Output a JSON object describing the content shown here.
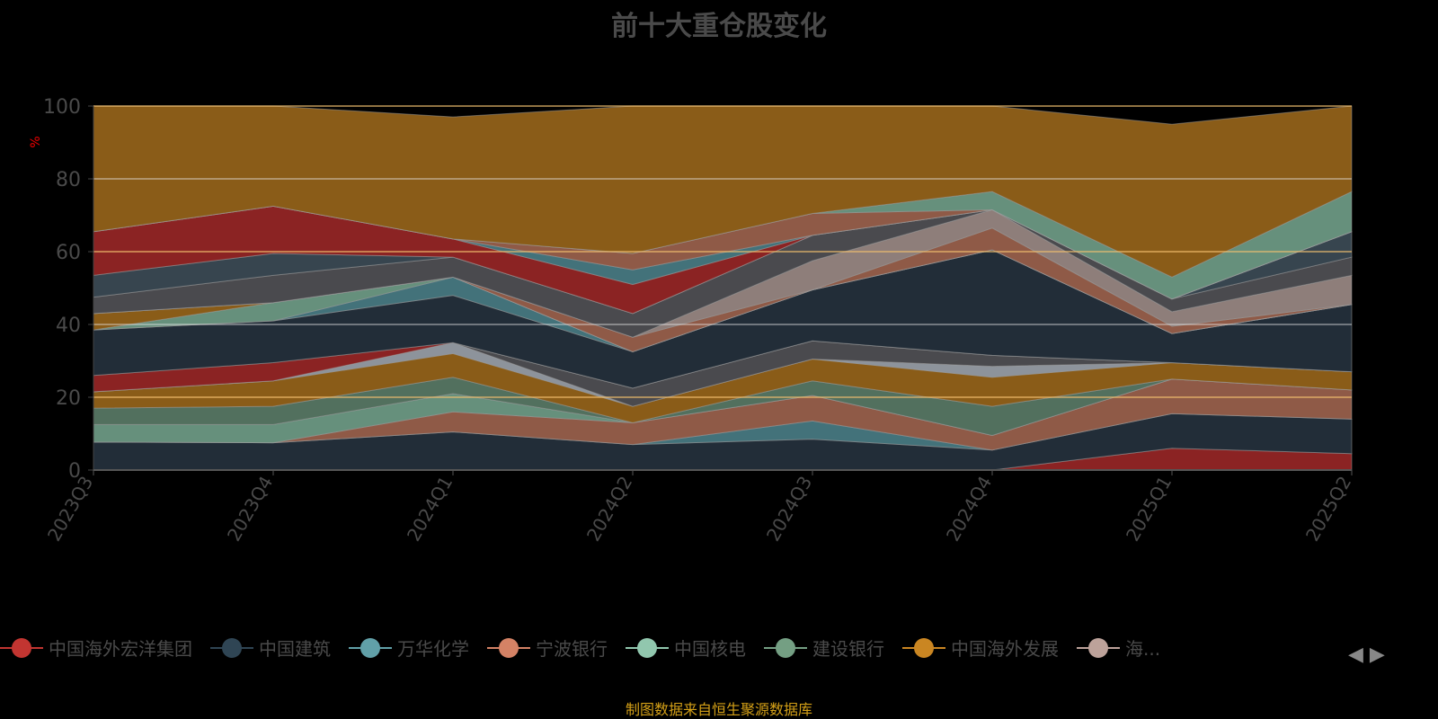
{
  "chart_data": {
    "type": "area",
    "title": "前十大重仓股变化",
    "ylabel": "%",
    "ylim": [
      0,
      100
    ],
    "yticks": [
      "0",
      "20",
      "40",
      "60",
      "80",
      "100"
    ],
    "categories": [
      "2023Q3",
      "2023Q4",
      "2024Q1",
      "2024Q2",
      "2024Q3",
      "2024Q4",
      "2025Q1",
      "2025Q2"
    ],
    "stacked": true,
    "grid": true,
    "legend_position": "bottom",
    "source": "制图数据来自恒生聚源数据库",
    "legend": [
      {
        "name": "中国海外宏洋集团",
        "color": "#c23531"
      },
      {
        "name": "中国建筑",
        "color": "#2f4554"
      },
      {
        "name": "万华化学",
        "color": "#61a0a8"
      },
      {
        "name": "宁波银行",
        "color": "#d48265"
      },
      {
        "name": "中国核电",
        "color": "#91c7ae"
      },
      {
        "name": "建设银行",
        "color": "#749f83"
      },
      {
        "name": "中国海外发展",
        "color": "#ca8622"
      },
      {
        "name": "海...",
        "color": "#bda29a"
      }
    ],
    "bands": [
      {
        "color": "#8b2323",
        "values": [
          0,
          0,
          0,
          0,
          0,
          0,
          6,
          4.5
        ]
      },
      {
        "color": "#222d38",
        "values": [
          7.7,
          7.5,
          10.5,
          7,
          8.5,
          5.5,
          9.5,
          9.5
        ]
      },
      {
        "color": "#43727a",
        "values": [
          0,
          0,
          0,
          0,
          5,
          0,
          0,
          0
        ]
      },
      {
        "color": "#8f5a47",
        "values": [
          0,
          0,
          5.5,
          6,
          7,
          4,
          9.5,
          8
        ]
      },
      {
        "color": "#66907c",
        "values": [
          4.8,
          5,
          5,
          0,
          0,
          0,
          0,
          0
        ]
      },
      {
        "color": "#52705e",
        "values": [
          4.5,
          5,
          4.5,
          0,
          4,
          8,
          0,
          0
        ]
      },
      {
        "color": "#8a5c18",
        "values": [
          4.5,
          7,
          6.5,
          4.5,
          6,
          8,
          4.5,
          5
        ]
      },
      {
        "color": "#8d939b",
        "values": [
          0,
          0,
          3,
          0,
          0,
          3,
          0,
          0
        ]
      },
      {
        "color": "#4a4a4e",
        "values": [
          0,
          0,
          0,
          5,
          5,
          3,
          0,
          0
        ]
      },
      {
        "color": "#8b2323",
        "values": [
          4.5,
          5,
          0,
          0,
          0,
          0,
          0,
          0
        ]
      },
      {
        "color": "#222d38",
        "values": [
          12.5,
          11.5,
          13,
          10,
          14,
          29,
          8,
          18.5
        ]
      },
      {
        "color": "#43727a",
        "values": [
          0,
          0,
          5,
          0,
          0,
          0,
          0,
          0
        ]
      },
      {
        "color": "#66907c",
        "values": [
          0,
          5,
          0,
          0,
          0,
          0,
          0,
          0
        ]
      },
      {
        "color": "#8a5c18",
        "values": [
          4.5,
          0,
          0,
          0,
          0,
          0,
          0,
          0
        ]
      },
      {
        "color": "#8f5a47",
        "values": [
          0,
          0,
          0,
          4,
          0,
          6,
          2,
          0
        ]
      },
      {
        "color": "#8e7e7a",
        "values": [
          0,
          0,
          0,
          0,
          8,
          5,
          4,
          8
        ]
      },
      {
        "color": "#4a4a4e",
        "values": [
          4.5,
          7.5,
          5.5,
          6.5,
          7,
          0,
          3.5,
          5
        ]
      },
      {
        "color": "#37454f",
        "values": [
          6,
          6,
          0,
          0,
          0,
          0,
          0,
          7
        ]
      },
      {
        "color": "#8b2323",
        "values": [
          12,
          13,
          5,
          8,
          0,
          0,
          0,
          0
        ]
      },
      {
        "color": "#43727a",
        "values": [
          0,
          0,
          0,
          4,
          0,
          0,
          0,
          0
        ]
      },
      {
        "color": "#8f5a47",
        "values": [
          0,
          0,
          0,
          4.5,
          6,
          0,
          0,
          0
        ]
      },
      {
        "color": "#66907c",
        "values": [
          0,
          0,
          0,
          0,
          0,
          5,
          6,
          11
        ]
      },
      {
        "color": "#8a5c18",
        "values": [
          34.5,
          27.5,
          33.5,
          40.5,
          29.5,
          23.5,
          42,
          23.5
        ]
      }
    ]
  }
}
